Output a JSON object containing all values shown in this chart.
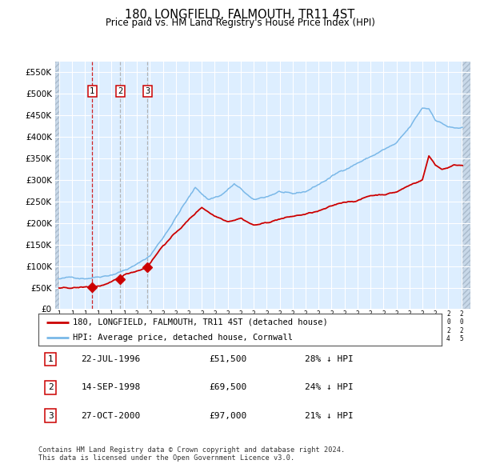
{
  "title": "180, LONGFIELD, FALMOUTH, TR11 4ST",
  "subtitle": "Price paid vs. HM Land Registry's House Price Index (HPI)",
  "legend_line1": "180, LONGFIELD, FALMOUTH, TR11 4ST (detached house)",
  "legend_line2": "HPI: Average price, detached house, Cornwall",
  "footer1": "Contains HM Land Registry data © Crown copyright and database right 2024.",
  "footer2": "This data is licensed under the Open Government Licence v3.0.",
  "transactions": [
    {
      "num": 1,
      "date": "22-JUL-1996",
      "price": 51500,
      "price_str": "£51,500",
      "hpi_diff": "28% ↓ HPI",
      "year": 1996.55
    },
    {
      "num": 2,
      "date": "14-SEP-1998",
      "price": 69500,
      "price_str": "£69,500",
      "hpi_diff": "24% ↓ HPI",
      "year": 1998.71
    },
    {
      "num": 3,
      "date": "27-OCT-2000",
      "price": 97000,
      "price_str": "£97,000",
      "hpi_diff": "21% ↓ HPI",
      "year": 2000.82
    }
  ],
  "hpi_color": "#7ab8e8",
  "price_color": "#cc0000",
  "vline1_color": "#cc0000",
  "vline23_color": "#aaaaaa",
  "bg_color": "#ddeeff",
  "grid_color": "#ffffff",
  "ylim_min": 0,
  "ylim_max": 575000,
  "xlim_start": 1993.7,
  "xlim_end": 2025.7,
  "hpi_anchors_t": [
    1994.0,
    1995.0,
    1996.0,
    1997.0,
    1998.0,
    1999.0,
    2000.0,
    2001.0,
    2002.0,
    2003.5,
    2004.5,
    2005.5,
    2006.5,
    2007.5,
    2008.0,
    2008.5,
    2009.0,
    2010.0,
    2011.0,
    2012.0,
    2013.0,
    2014.0,
    2015.0,
    2016.0,
    2017.0,
    2018.0,
    2019.0,
    2020.0,
    2021.0,
    2022.0,
    2022.5,
    2023.0,
    2024.0,
    2024.5
  ],
  "hpi_anchors_v": [
    70000,
    72000,
    73000,
    79000,
    86000,
    97000,
    110000,
    130000,
    172000,
    245000,
    288000,
    262000,
    273000,
    298000,
    285000,
    272000,
    257000,
    265000,
    278000,
    267000,
    273000,
    290000,
    308000,
    325000,
    342000,
    356000,
    372000,
    385000,
    418000,
    463000,
    462000,
    438000,
    422000,
    418000
  ],
  "price_anchors_t": [
    1994.0,
    1995.0,
    1996.0,
    1996.55,
    1997.0,
    1998.0,
    1998.71,
    1999.0,
    2000.0,
    2000.82,
    2001.0,
    2002.0,
    2003.0,
    2004.0,
    2005.0,
    2006.0,
    2007.0,
    2008.0,
    2009.0,
    2010.0,
    2011.0,
    2012.0,
    2013.0,
    2014.0,
    2015.0,
    2016.0,
    2017.0,
    2018.0,
    2019.0,
    2020.0,
    2021.0,
    2022.0,
    2022.5,
    2023.0,
    2023.5,
    2024.0,
    2024.5
  ],
  "price_anchors_v": [
    48000,
    49000,
    50500,
    51500,
    53000,
    60000,
    69500,
    76000,
    87000,
    97000,
    107000,
    148000,
    178000,
    208000,
    237000,
    218000,
    208000,
    218000,
    202000,
    207000,
    217000,
    222000,
    227000,
    233000,
    242000,
    252000,
    257000,
    268000,
    272000,
    278000,
    293000,
    307000,
    362000,
    342000,
    332000,
    337000,
    342000
  ]
}
